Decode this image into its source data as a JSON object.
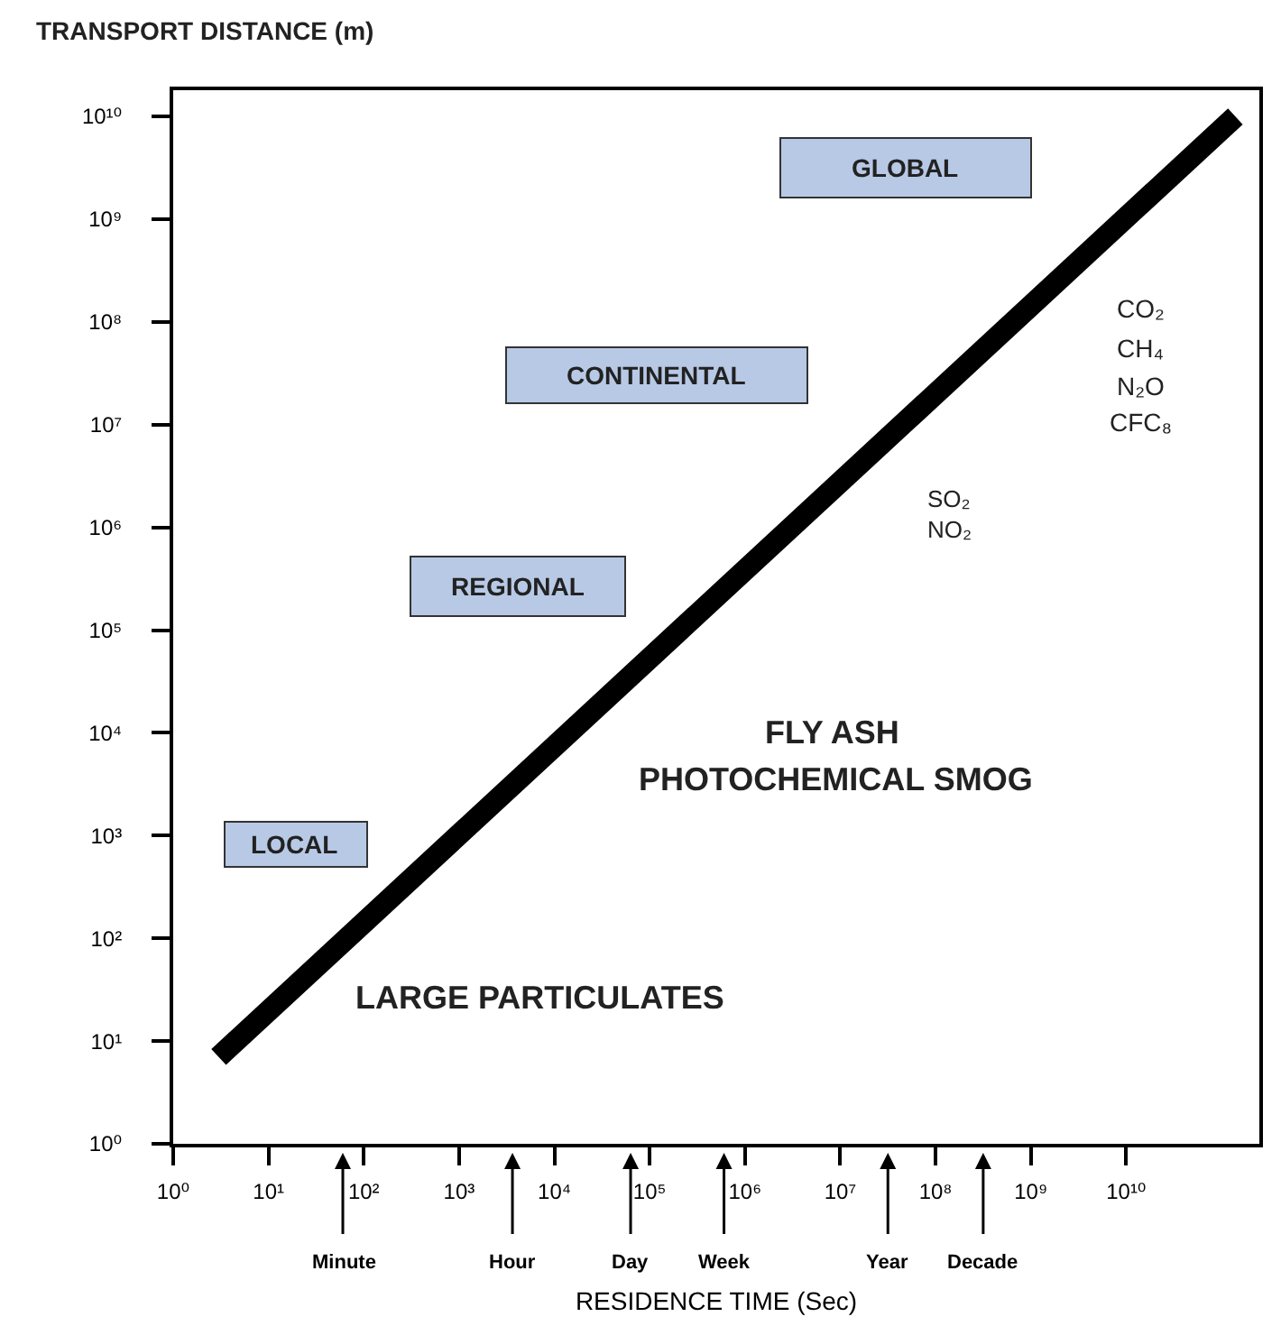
{
  "chart_data": {
    "type": "line",
    "xlabel": "RESIDENCE TIME (Sec)",
    "ylabel": "TRANSPORT DISTANCE (m)",
    "log": "xy",
    "grid": false,
    "marker": "none",
    "line_style": "solid",
    "xlim": [
      1,
      250000000000
    ],
    "ylim": [
      1,
      18000000000
    ],
    "xticks": [
      {
        "value": 1,
        "label": "10⁰"
      },
      {
        "value": 10,
        "label": "10¹"
      },
      {
        "value": 100,
        "label": "10²"
      },
      {
        "value": 1000,
        "label": "10³"
      },
      {
        "value": 10000,
        "label": "10⁴"
      },
      {
        "value": 100000,
        "label": "10⁵"
      },
      {
        "value": 1000000,
        "label": "10⁶"
      },
      {
        "value": 10000000,
        "label": "10⁷"
      },
      {
        "value": 100000000,
        "label": "10⁸"
      },
      {
        "value": 1000000000,
        "label": "10⁹"
      },
      {
        "value": 10000000000,
        "label": "10¹⁰"
      }
    ],
    "yticks": [
      {
        "value": 1,
        "label": "10⁰"
      },
      {
        "value": 10,
        "label": "10¹"
      },
      {
        "value": 100,
        "label": "10²"
      },
      {
        "value": 1000,
        "label": "10³"
      },
      {
        "value": 10000,
        "label": "10⁴"
      },
      {
        "value": 100000,
        "label": "10⁵"
      },
      {
        "value": 1000000,
        "label": "10⁶"
      },
      {
        "value": 10000000,
        "label": "10⁷"
      },
      {
        "value": 100000000,
        "label": "10⁸"
      },
      {
        "value": 1000000000,
        "label": "10⁹"
      },
      {
        "value": 10000000000,
        "label": "10¹⁰"
      }
    ],
    "series": [
      {
        "color": "#000000",
        "x": [
          3,
          140000000000
        ],
        "values": [
          7,
          10000000000
        ]
      }
    ],
    "annotations": [
      "LOCAL",
      "REGIONAL",
      "CONTINENTAL",
      "GLOBAL",
      "CO₂",
      "CH₄",
      "N₂O",
      "CFC₈",
      "SO₂",
      "NO₂",
      "FLY ASH",
      "PHOTOCHEMICAL SMOG",
      "LARGE PARTICULATES",
      "Minute",
      "Hour",
      "Day",
      "Week",
      "Year",
      "Decade"
    ]
  }
}
